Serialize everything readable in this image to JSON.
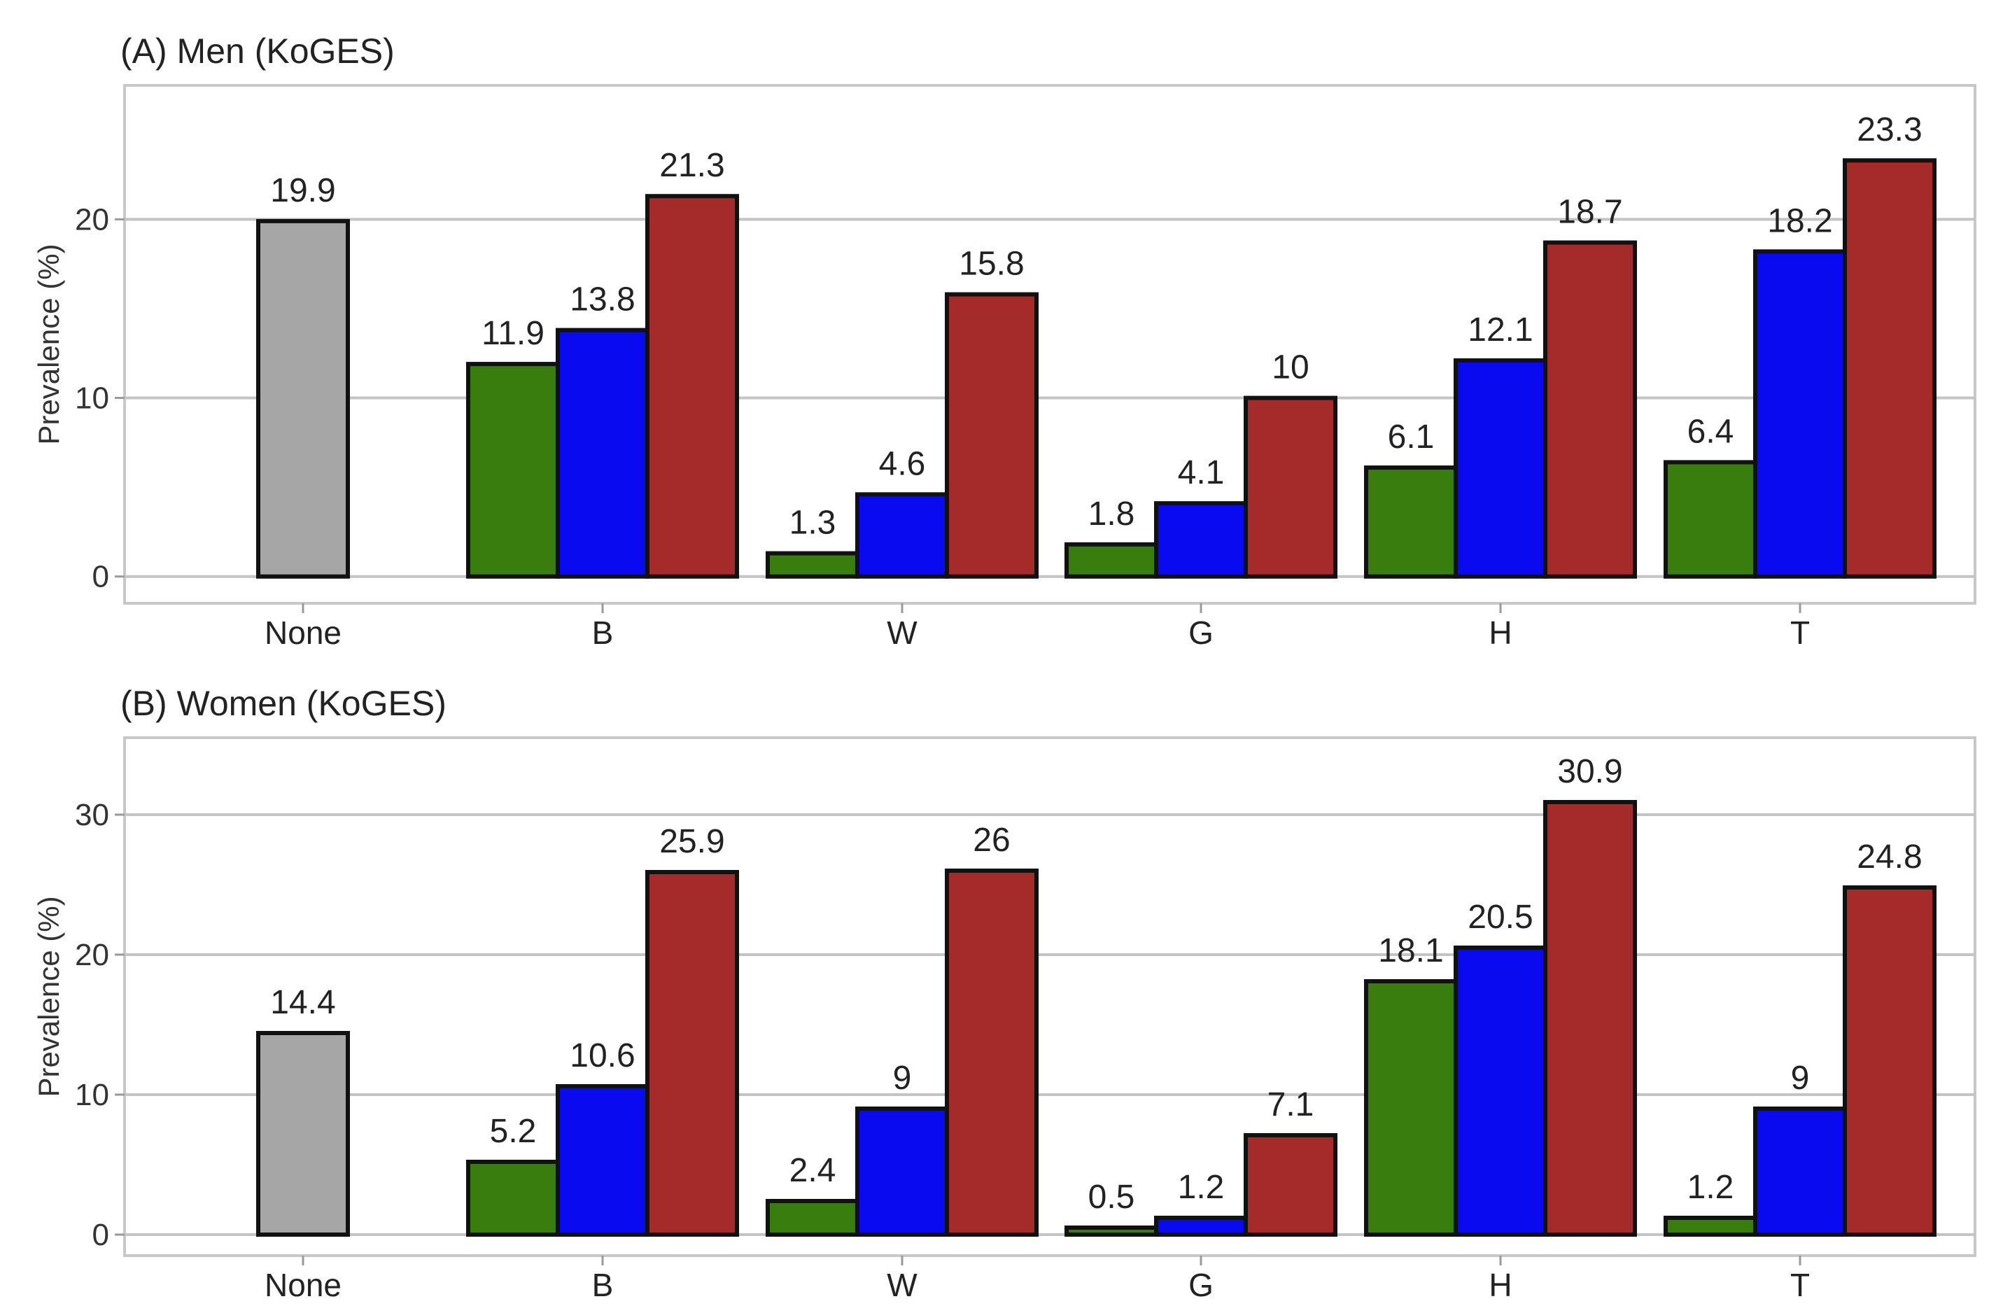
{
  "chart_data": [
    {
      "type": "bar",
      "title": "(A) Men (KoGES)",
      "xlabel": "",
      "ylabel": "Prevalence (%)",
      "ylim": [
        -1.5,
        27.5
      ],
      "yticks": [
        0,
        10,
        20
      ],
      "grid": true,
      "categories": [
        "None",
        "B",
        "W",
        "G",
        "H",
        "T"
      ],
      "groups": [
        {
          "category": "None",
          "values": [
            19.9
          ],
          "labels": [
            "19.9"
          ],
          "colors": [
            "#a6a6a6"
          ]
        },
        {
          "category": "B",
          "values": [
            11.9,
            13.8,
            21.3
          ],
          "labels": [
            "11.9",
            "13.8",
            "21.3"
          ],
          "colors": [
            "#3a7d0f",
            "#0a0af0",
            "#a52a2a"
          ]
        },
        {
          "category": "W",
          "values": [
            1.3,
            4.6,
            15.8
          ],
          "labels": [
            "1.3",
            "4.6",
            "15.8"
          ],
          "colors": [
            "#3a7d0f",
            "#0a0af0",
            "#a52a2a"
          ]
        },
        {
          "category": "G",
          "values": [
            1.8,
            4.1,
            10
          ],
          "labels": [
            "1.8",
            "4.1",
            "10"
          ],
          "colors": [
            "#3a7d0f",
            "#0a0af0",
            "#a52a2a"
          ]
        },
        {
          "category": "H",
          "values": [
            6.1,
            12.1,
            18.7
          ],
          "labels": [
            "6.1",
            "12.1",
            "18.7"
          ],
          "colors": [
            "#3a7d0f",
            "#0a0af0",
            "#a52a2a"
          ]
        },
        {
          "category": "T",
          "values": [
            6.4,
            18.2,
            23.3
          ],
          "labels": [
            "6.4",
            "18.2",
            "23.3"
          ],
          "colors": [
            "#3a7d0f",
            "#0a0af0",
            "#a52a2a"
          ]
        }
      ]
    },
    {
      "type": "bar",
      "title": "(B) Women (KoGES)",
      "xlabel": "",
      "ylabel": "Prevalence (%)",
      "ylim": [
        -1.5,
        35.5
      ],
      "yticks": [
        0,
        10,
        20,
        30
      ],
      "grid": true,
      "categories": [
        "None",
        "B",
        "W",
        "G",
        "H",
        "T"
      ],
      "groups": [
        {
          "category": "None",
          "values": [
            14.4
          ],
          "labels": [
            "14.4"
          ],
          "colors": [
            "#a6a6a6"
          ]
        },
        {
          "category": "B",
          "values": [
            5.2,
            10.6,
            25.9
          ],
          "labels": [
            "5.2",
            "10.6",
            "25.9"
          ],
          "colors": [
            "#3a7d0f",
            "#0a0af0",
            "#a52a2a"
          ]
        },
        {
          "category": "W",
          "values": [
            2.4,
            9,
            26
          ],
          "labels": [
            "2.4",
            "9",
            "26"
          ],
          "colors": [
            "#3a7d0f",
            "#0a0af0",
            "#a52a2a"
          ]
        },
        {
          "category": "G",
          "values": [
            0.5,
            1.2,
            7.1
          ],
          "labels": [
            "0.5",
            "1.2",
            "7.1"
          ],
          "colors": [
            "#3a7d0f",
            "#0a0af0",
            "#a52a2a"
          ]
        },
        {
          "category": "H",
          "values": [
            18.1,
            20.5,
            30.9
          ],
          "labels": [
            "18.1",
            "20.5",
            "30.9"
          ],
          "colors": [
            "#3a7d0f",
            "#0a0af0",
            "#a52a2a"
          ]
        },
        {
          "category": "T",
          "values": [
            1.2,
            9,
            24.8
          ],
          "labels": [
            "1.2",
            "9",
            "24.8"
          ],
          "colors": [
            "#3a7d0f",
            "#0a0af0",
            "#a52a2a"
          ]
        }
      ]
    }
  ]
}
